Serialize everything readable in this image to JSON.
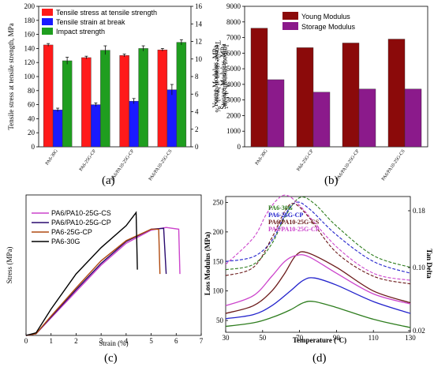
{
  "panels": {
    "a": {
      "label": "(a)"
    },
    "b": {
      "label": "(b)"
    },
    "c": {
      "label": "(c)"
    },
    "d": {
      "label": "(d)"
    }
  },
  "chart_data": [
    {
      "id": "a",
      "type": "bar",
      "categories": [
        "PA6-30G",
        "PA6-25G-CP",
        "PA6/PA10-25G-CP",
        "PA6/PA10-25G-CS"
      ],
      "ylabel": "Tensile stress at tensile strength, MPa",
      "ylabel_right": "Tensile strain at break, %\nImpact strength, kJ/m²",
      "ylim": [
        0,
        200
      ],
      "ylim_right": [
        0,
        16
      ],
      "yticks": [
        "0",
        "20",
        "40",
        "60",
        "80",
        "100",
        "120",
        "140",
        "160",
        "180",
        "200"
      ],
      "yticks_right": [
        "0",
        "2",
        "4",
        "6",
        "8",
        "10",
        "12",
        "14",
        "16"
      ],
      "legend_position": "top-left",
      "series": [
        {
          "name": "Tensile stress at tensile strength",
          "axis": "left",
          "color": "#ff1a1a",
          "values": [
            145,
            127,
            130,
            138
          ],
          "errors": [
            2,
            2,
            2,
            2
          ]
        },
        {
          "name": "Tensile strain at break",
          "axis": "right",
          "color": "#1a1aff",
          "values": [
            4.2,
            4.8,
            5.2,
            6.5
          ],
          "errors": [
            0.2,
            0.2,
            0.3,
            0.6
          ]
        },
        {
          "name": "Impact strength",
          "axis": "right",
          "color": "#1f9e1f",
          "values": [
            9.8,
            11.0,
            11.2,
            11.9
          ],
          "errors": [
            0.4,
            0.5,
            0.3,
            0.3
          ]
        }
      ]
    },
    {
      "id": "b",
      "type": "bar",
      "categories": [
        "PA6-30G",
        "PA6-25G-CP",
        "PA6/PA10-25G-CP",
        "PA6/PA10-25G-CS"
      ],
      "ylabel": "Young Modulus, MPa\nStorage Modulus, MPa",
      "ylim": [
        0,
        9000
      ],
      "yticks": [
        "0",
        "1000",
        "2000",
        "3000",
        "4000",
        "5000",
        "6000",
        "7000",
        "8000",
        "9000"
      ],
      "legend_position": "top-left",
      "series": [
        {
          "name": "Young Modulus",
          "color": "#8b0a0a",
          "values": [
            7600,
            6350,
            6650,
            6900
          ]
        },
        {
          "name": "Storage Modulus",
          "color": "#8b1a8b",
          "values": [
            4300,
            3500,
            3700,
            3700
          ]
        }
      ]
    },
    {
      "id": "c",
      "type": "line",
      "xlabel": "Strain (%)",
      "ylabel": "Stress (MPa)",
      "xlim": [
        0,
        7
      ],
      "xticks": [
        "0",
        "1",
        "2",
        "3",
        "4",
        "5",
        "6",
        "7"
      ],
      "legend_position": "top-left",
      "series": [
        {
          "name": "PA6/PA10-25G-CS",
          "color": "#cc44cc",
          "points": [
            [
              0,
              0
            ],
            [
              0.4,
              2
            ],
            [
              1,
              20
            ],
            [
              2,
              50
            ],
            [
              3,
              80
            ],
            [
              4,
              105
            ],
            [
              5,
              120
            ],
            [
              5.6,
              123
            ],
            [
              6.1,
              121
            ],
            [
              6.15,
              70
            ]
          ]
        },
        {
          "name": "PA6/PA10-25G-CP",
          "color": "#2a0a6e",
          "points": [
            [
              0,
              0
            ],
            [
              0.4,
              2
            ],
            [
              1,
              21
            ],
            [
              2,
              52
            ],
            [
              3,
              82
            ],
            [
              4,
              107
            ],
            [
              5,
              121
            ],
            [
              5.5,
              122
            ],
            [
              5.6,
              70
            ]
          ]
        },
        {
          "name": "PA6-25G-CP",
          "color": "#b04a10",
          "points": [
            [
              0,
              0
            ],
            [
              0.4,
              2
            ],
            [
              1,
              22
            ],
            [
              2,
              54
            ],
            [
              3,
              85
            ],
            [
              4,
              108
            ],
            [
              5,
              121
            ],
            [
              5.3,
              121
            ],
            [
              5.35,
              70
            ]
          ]
        },
        {
          "name": "PA6-30G",
          "color": "#000000",
          "points": [
            [
              0,
              0
            ],
            [
              0.4,
              3
            ],
            [
              1,
              30
            ],
            [
              2,
              70
            ],
            [
              3,
              100
            ],
            [
              4,
              125
            ],
            [
              4.4,
              140
            ],
            [
              4.45,
              75
            ]
          ]
        }
      ]
    },
    {
      "id": "d",
      "type": "line",
      "xlabel": "Temperature (°C)",
      "ylabel": "Loss Modulus (MPa)",
      "ylabel_right": "Tan Delta",
      "xlim": [
        30,
        130
      ],
      "xticks": [
        "30",
        "50",
        "70",
        "90",
        "110",
        "130"
      ],
      "yticks": [
        "50",
        "100",
        "150",
        "200",
        "250"
      ],
      "yticks_right": [
        "0.02",
        "0.10",
        "0.18"
      ],
      "legend_position": "top-left",
      "series": [
        {
          "name": "PA6-30G",
          "color": "#2e7d1e"
        },
        {
          "name": "PA6-25G-CP",
          "color": "#2222cc"
        },
        {
          "name": "PA6/PA10-25G-CS",
          "color": "#6b1a1a"
        },
        {
          "name": "PA6/PA10-25G-CP",
          "color": "#cc44cc"
        }
      ]
    }
  ]
}
